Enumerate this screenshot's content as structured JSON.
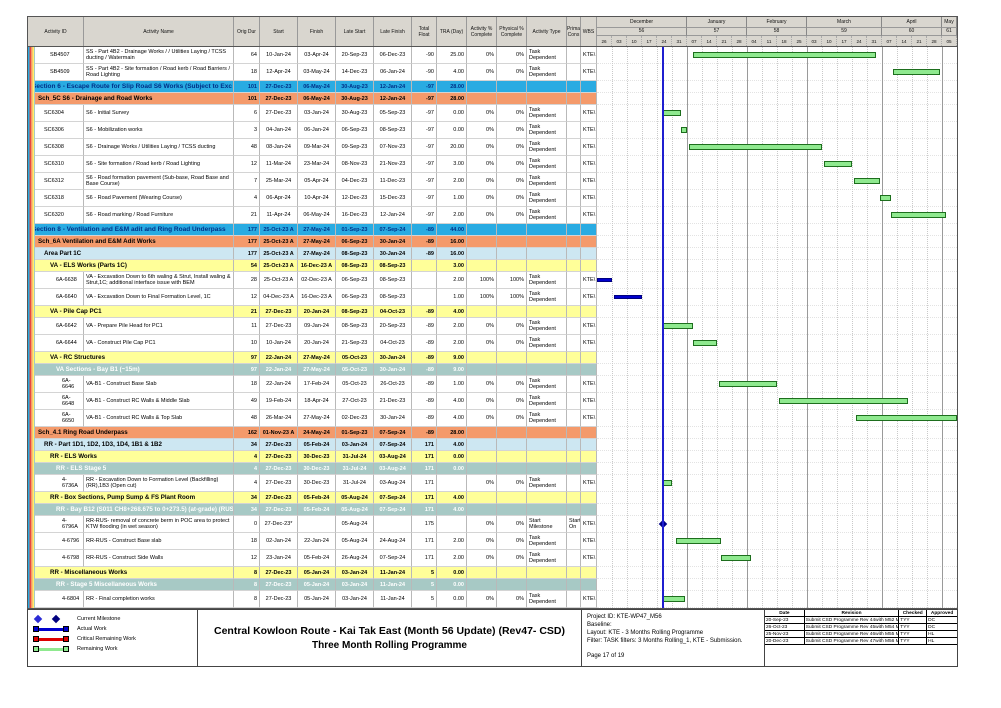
{
  "table": {
    "columns": [
      "Activity ID",
      "Activity Name",
      "Orig Dur",
      "Start",
      "Finish",
      "Late Start",
      "Late Finish",
      "Total Float",
      "TRA (Day)",
      "Activity % Complete",
      "Physical % Complete",
      "Activity Type",
      "Prima Cons",
      "WBS"
    ]
  },
  "timeline": {
    "chart_start": "26-Nov-23",
    "data_date": "27-Dec-23",
    "months": [
      {
        "label": "December",
        "num": "56",
        "weeks": [
          "26",
          "03",
          "10",
          "17",
          "24",
          "31"
        ]
      },
      {
        "label": "January",
        "num": "57",
        "weeks": [
          "07",
          "14",
          "21",
          "28"
        ]
      },
      {
        "label": "February",
        "num": "58",
        "weeks": [
          "04",
          "11",
          "18",
          "25"
        ]
      },
      {
        "label": "March",
        "num": "59",
        "weeks": [
          "03",
          "10",
          "17",
          "24",
          "31"
        ]
      },
      {
        "label": "April",
        "num": "60",
        "weeks": [
          "07",
          "14",
          "21",
          "28"
        ]
      },
      {
        "label": "May",
        "num": "61",
        "weeks": [
          "05"
        ]
      }
    ]
  },
  "rows": [
    {
      "t": "leaf",
      "l": 3,
      "id": "SB4507",
      "name": "SS - Part 4B2 - Drainage Works / / Utilities Laying / TCSS ducting / Watermain",
      "od": "64",
      "start": "10-Jan-24",
      "finish": "03-Apr-24",
      "ls": "20-Sep-23",
      "lf": "06-Dec-23",
      "tf": "-90",
      "tra": "25.00",
      "ap": "0%",
      "pp": "0%",
      "atype": "Task Dependent",
      "prima": "",
      "wbs": "KTE\\"
    },
    {
      "t": "leaf",
      "l": 3,
      "id": "SB4509",
      "name": "SS - Part 4B2 - Site formation / Road kerb / Road Barriers / Road Lighting",
      "od": "18",
      "start": "12-Apr-24",
      "finish": "03-May-24",
      "ls": "14-Dec-23",
      "lf": "06-Jan-24",
      "tf": "-90",
      "tra": "4.00",
      "ap": "0%",
      "pp": "0%",
      "atype": "Task Dependent",
      "prima": "",
      "wbs": "KTE\\"
    },
    {
      "t": "sec",
      "l": 0,
      "name": "Section 6 - Escape Route for Slip Road S6 Works (Subject to Exc",
      "od": "101",
      "start": "27-Dec-23",
      "finish": "06-May-24",
      "ls": "30-Aug-23",
      "lf": "12-Jan-24",
      "tf": "-97",
      "tra": "28.00"
    },
    {
      "t": "sch",
      "l": 1,
      "name": "Sch_5C S6 - Drainage and Road Works",
      "od": "101",
      "start": "27-Dec-23",
      "finish": "06-May-24",
      "ls": "30-Aug-23",
      "lf": "12-Jan-24",
      "tf": "-97",
      "tra": "28.00"
    },
    {
      "t": "leaf",
      "l": 2,
      "id": "SC6304",
      "name": "S6 - Initial Survey",
      "od": "6",
      "start": "27-Dec-23",
      "finish": "03-Jan-24",
      "ls": "30-Aug-23",
      "lf": "05-Sep-23",
      "tf": "-97",
      "tra": "0.00",
      "ap": "0%",
      "pp": "0%",
      "atype": "Task Dependent",
      "prima": "",
      "wbs": "KTE\\"
    },
    {
      "t": "leaf",
      "l": 2,
      "id": "SC6306",
      "name": "S6 - Mobilization works",
      "od": "3",
      "start": "04-Jan-24",
      "finish": "06-Jan-24",
      "ls": "06-Sep-23",
      "lf": "08-Sep-23",
      "tf": "-97",
      "tra": "0.00",
      "ap": "0%",
      "pp": "0%",
      "atype": "Task Dependent",
      "prima": "",
      "wbs": "KTE\\"
    },
    {
      "t": "leaf",
      "l": 2,
      "id": "SC6308",
      "name": "S6 - Drainage Works / Utilities Laying / TCSS ducting",
      "od": "48",
      "start": "08-Jan-24",
      "finish": "09-Mar-24",
      "ls": "09-Sep-23",
      "lf": "07-Nov-23",
      "tf": "-97",
      "tra": "20.00",
      "ap": "0%",
      "pp": "0%",
      "atype": "Task Dependent",
      "prima": "",
      "wbs": "KTE\\"
    },
    {
      "t": "leaf",
      "l": 2,
      "id": "SC6310",
      "name": "S6 - Site formation / Road kerb / Road Lighting",
      "od": "12",
      "start": "11-Mar-24",
      "finish": "23-Mar-24",
      "ls": "08-Nov-23",
      "lf": "21-Nov-23",
      "tf": "-97",
      "tra": "3.00",
      "ap": "0%",
      "pp": "0%",
      "atype": "Task Dependent",
      "prima": "",
      "wbs": "KTE\\"
    },
    {
      "t": "leaf",
      "l": 2,
      "id": "SC6312",
      "name": "S6 - Road formation pavement (Sub-base, Road Base and Base Course)",
      "od": "7",
      "start": "25-Mar-24",
      "finish": "05-Apr-24",
      "ls": "04-Dec-23",
      "lf": "11-Dec-23",
      "tf": "-97",
      "tra": "2.00",
      "ap": "0%",
      "pp": "0%",
      "atype": "Task Dependent",
      "prima": "",
      "wbs": "KTE\\"
    },
    {
      "t": "leaf",
      "l": 2,
      "id": "SC6318",
      "name": "S6 - Road Pavement (Wearing Course)",
      "od": "4",
      "start": "06-Apr-24",
      "finish": "10-Apr-24",
      "ls": "12-Dec-23",
      "lf": "15-Dec-23",
      "tf": "-97",
      "tra": "1.00",
      "ap": "0%",
      "pp": "0%",
      "atype": "Task Dependent",
      "prima": "",
      "wbs": "KTE\\"
    },
    {
      "t": "leaf",
      "l": 2,
      "id": "SC6320",
      "name": "S6 - Road marking / Road Furniture",
      "od": "21",
      "start": "11-Apr-24",
      "finish": "06-May-24",
      "ls": "16-Dec-23",
      "lf": "12-Jan-24",
      "tf": "-97",
      "tra": "2.00",
      "ap": "0%",
      "pp": "0%",
      "atype": "Task Dependent",
      "prima": "",
      "wbs": "KTE\\"
    },
    {
      "t": "sec",
      "l": 0,
      "name": "Section 8 - Ventilation and E&M adit and Ring Road Underpass",
      "od": "177",
      "start": "25-Oct-23 A",
      "finish": "27-May-24",
      "ls": "01-Sep-23",
      "lf": "07-Sep-24",
      "tf": "-89",
      "tra": "44.00"
    },
    {
      "t": "sch",
      "l": 1,
      "name": "Sch_6A Ventilation and E&M Adit Works",
      "od": "177",
      "start": "25-Oct-23 A",
      "finish": "27-May-24",
      "ls": "06-Sep-23",
      "lf": "30-Jan-24",
      "tf": "-89",
      "tra": "16.00"
    },
    {
      "t": "area",
      "l": 2,
      "name": "Area Part 1C",
      "od": "177",
      "start": "25-Oct-23 A",
      "finish": "27-May-24",
      "ls": "08-Sep-23",
      "lf": "30-Jan-24",
      "tf": "-89",
      "tra": "16.00"
    },
    {
      "t": "sub",
      "l": 3,
      "name": "VA - ELS Works (Parts 1C)",
      "od": "54",
      "start": "25-Oct-23 A",
      "finish": "16-Dec-23 A",
      "ls": "08-Sep-23",
      "lf": "08-Sep-23",
      "tf": "",
      "tra": "3.00"
    },
    {
      "t": "leaf",
      "l": 4,
      "id": "6A-6638",
      "name": "VA - Excavation Down to 6th waling & Strut, Install waling & Strut,1C; additional interface issue with BEM",
      "od": "28",
      "start": "25-Oct-23 A",
      "finish": "02-Dec-23 A",
      "ls": "06-Sep-23",
      "lf": "08-Sep-23",
      "tf": "",
      "tra": "2.00",
      "ap": "100%",
      "pp": "100%",
      "atype": "Task Dependent",
      "prima": "",
      "wbs": "KTE\\"
    },
    {
      "t": "leaf",
      "l": 4,
      "id": "6A-6640",
      "name": "VA - Excavation Down to Final Formation Level, 1C",
      "od": "12",
      "start": "04-Dec-23 A",
      "finish": "16-Dec-23 A",
      "ls": "06-Sep-23",
      "lf": "08-Sep-23",
      "tf": "",
      "tra": "1.00",
      "ap": "100%",
      "pp": "100%",
      "atype": "Task Dependent",
      "prima": "",
      "wbs": "KTE\\"
    },
    {
      "t": "sub",
      "l": 3,
      "name": "VA - Pile Cap PC1",
      "od": "21",
      "start": "27-Dec-23",
      "finish": "20-Jan-24",
      "ls": "08-Sep-23",
      "lf": "04-Oct-23",
      "tf": "-89",
      "tra": "4.00"
    },
    {
      "t": "leaf",
      "l": 4,
      "id": "6A-6642",
      "name": "VA - Prepare Pile Head for PC1",
      "od": "11",
      "start": "27-Dec-23",
      "finish": "09-Jan-24",
      "ls": "08-Sep-23",
      "lf": "20-Sep-23",
      "tf": "-89",
      "tra": "2.00",
      "ap": "0%",
      "pp": "0%",
      "atype": "Task Dependent",
      "prima": "",
      "wbs": "KTE\\"
    },
    {
      "t": "leaf",
      "l": 4,
      "id": "6A-6644",
      "name": "VA - Construct Pile Cap PC1",
      "od": "10",
      "start": "10-Jan-24",
      "finish": "20-Jan-24",
      "ls": "21-Sep-23",
      "lf": "04-Oct-23",
      "tf": "-89",
      "tra": "2.00",
      "ap": "0%",
      "pp": "0%",
      "atype": "Task Dependent",
      "prima": "",
      "wbs": "KTE\\"
    },
    {
      "t": "sub",
      "l": 3,
      "name": "VA - RC Structures",
      "od": "97",
      "start": "22-Jan-24",
      "finish": "27-May-24",
      "ls": "05-Oct-23",
      "lf": "30-Jan-24",
      "tf": "-89",
      "tra": "9.00"
    },
    {
      "t": "bay",
      "l": 4,
      "name": "VA Sections - Bay B1 (~15m)",
      "od": "97",
      "start": "22-Jan-24",
      "finish": "27-May-24",
      "ls": "05-Oct-23",
      "lf": "30-Jan-24",
      "tf": "-89",
      "tra": "9.00"
    },
    {
      "t": "leaf",
      "l": 5,
      "id": "6A-6646",
      "name": "VA-B1 - Construct Base Slab",
      "od": "18",
      "start": "22-Jan-24",
      "finish": "17-Feb-24",
      "ls": "05-Oct-23",
      "lf": "26-Oct-23",
      "tf": "-89",
      "tra": "1.00",
      "ap": "0%",
      "pp": "0%",
      "atype": "Task Dependent",
      "prima": "",
      "wbs": "KTE\\"
    },
    {
      "t": "leaf",
      "l": 5,
      "id": "6A-6648",
      "name": "VA-B1 - Construct RC Walls & Middle Slab",
      "od": "49",
      "start": "19-Feb-24",
      "finish": "18-Apr-24",
      "ls": "27-Oct-23",
      "lf": "21-Dec-23",
      "tf": "-89",
      "tra": "4.00",
      "ap": "0%",
      "pp": "0%",
      "atype": "Task Dependent",
      "prima": "",
      "wbs": "KTE\\"
    },
    {
      "t": "leaf",
      "l": 5,
      "id": "6A-6650",
      "name": "VA-B1 - Construct RC Walls & Top Slab",
      "od": "48",
      "start": "26-Mar-24",
      "finish": "27-May-24",
      "ls": "02-Dec-23",
      "lf": "30-Jan-24",
      "tf": "-89",
      "tra": "4.00",
      "ap": "0%",
      "pp": "0%",
      "atype": "Task Dependent",
      "prima": "",
      "wbs": "KTE\\"
    },
    {
      "t": "sch",
      "l": 1,
      "name": "Sch_4.1 Ring Road Underpass",
      "od": "162",
      "start": "01-Nov-23 A",
      "finish": "24-May-24",
      "ls": "01-Sep-23",
      "lf": "07-Sep-24",
      "tf": "-89",
      "tra": "28.00"
    },
    {
      "t": "area",
      "l": 2,
      "name": "RR - Part 1D1, 1D2, 1D3, 1D4, 1B1 & 1B2",
      "od": "34",
      "start": "27-Dec-23",
      "finish": "05-Feb-24",
      "ls": "03-Jan-24",
      "lf": "07-Sep-24",
      "tf": "171",
      "tra": "4.00"
    },
    {
      "t": "sub",
      "l": 3,
      "name": "RR - ELS Works",
      "od": "4",
      "start": "27-Dec-23",
      "finish": "30-Dec-23",
      "ls": "31-Jul-24",
      "lf": "03-Aug-24",
      "tf": "171",
      "tra": "0.00"
    },
    {
      "t": "bay",
      "l": 4,
      "name": "RR - ELS Stage 5",
      "od": "4",
      "start": "27-Dec-23",
      "finish": "30-Dec-23",
      "ls": "31-Jul-24",
      "lf": "03-Aug-24",
      "tf": "171",
      "tra": "0.00"
    },
    {
      "t": "leaf",
      "l": 5,
      "id": "4-6736A",
      "name": "RR - Excavation Down to Formation Level (Backfilling) (RR),1B3 (Open cut)",
      "od": "4",
      "start": "27-Dec-23",
      "finish": "30-Dec-23",
      "ls": "31-Jul-24",
      "lf": "03-Aug-24",
      "tf": "171",
      "tra": "",
      "ap": "0%",
      "pp": "0%",
      "atype": "Task Dependent",
      "prima": "",
      "wbs": "KTE\\"
    },
    {
      "t": "sub",
      "l": 3,
      "name": "RR - Box Sections, Pump Sump & FS Plant Room",
      "od": "34",
      "start": "27-Dec-23",
      "finish": "05-Feb-24",
      "ls": "05-Aug-24",
      "lf": "07-Sep-24",
      "tf": "171",
      "tra": "4.00"
    },
    {
      "t": "bay",
      "l": 4,
      "name": "RR - Bay B12 (S011 CH8+268.675 to 0+273.5) (at-grade) (RUS)",
      "od": "34",
      "start": "27-Dec-23",
      "finish": "05-Feb-24",
      "ls": "05-Aug-24",
      "lf": "07-Sep-24",
      "tf": "171",
      "tra": "4.00"
    },
    {
      "t": "leaf",
      "l": 5,
      "id": "4-6796A",
      "name": "RR-RUS- removal of concrete berm in POC area to protect KTW flooding (in wet season)",
      "od": "0",
      "start": "27-Dec-23*",
      "finish": "",
      "ls": "05-Aug-24",
      "lf": "",
      "tf": "175",
      "tra": "",
      "ap": "0%",
      "pp": "0%",
      "atype": "Start Milestone",
      "prima": "Start On",
      "wbs": "KTE\\"
    },
    {
      "t": "leaf",
      "l": 5,
      "id": "4-6796",
      "name": "RR-RUS - Construct Base slab",
      "od": "18",
      "start": "02-Jan-24",
      "finish": "22-Jan-24",
      "ls": "05-Aug-24",
      "lf": "24-Aug-24",
      "tf": "171",
      "tra": "2.00",
      "ap": "0%",
      "pp": "0%",
      "atype": "Task Dependent",
      "prima": "",
      "wbs": "KTE\\"
    },
    {
      "t": "leaf",
      "l": 5,
      "id": "4-6798",
      "name": "RR-RUS - Construct Side Walls",
      "od": "12",
      "start": "23-Jan-24",
      "finish": "05-Feb-24",
      "ls": "26-Aug-24",
      "lf": "07-Sep-24",
      "tf": "171",
      "tra": "2.00",
      "ap": "0%",
      "pp": "0%",
      "atype": "Task Dependent",
      "prima": "",
      "wbs": "KTE\\"
    },
    {
      "t": "sub",
      "l": 3,
      "name": "RR - Miscellaneous Works",
      "od": "8",
      "start": "27-Dec-23",
      "finish": "05-Jan-24",
      "ls": "03-Jan-24",
      "lf": "11-Jan-24",
      "tf": "5",
      "tra": "0.00"
    },
    {
      "t": "bay",
      "l": 4,
      "name": "RR - Stage 5 Miscellaneous Works",
      "od": "8",
      "start": "27-Dec-23",
      "finish": "05-Jan-24",
      "ls": "03-Jan-24",
      "lf": "11-Jan-24",
      "tf": "5",
      "tra": "0.00"
    },
    {
      "t": "leaf",
      "l": 5,
      "id": "4-6804",
      "name": "RR - Final completion works",
      "od": "8",
      "start": "27-Dec-23",
      "finish": "05-Jan-24",
      "ls": "03-Jan-24",
      "lf": "11-Jan-24",
      "tf": "5",
      "tra": "0.00",
      "ap": "0%",
      "pp": "0%",
      "atype": "Task Dependent",
      "prima": "",
      "wbs": "KTE\\"
    }
  ],
  "legend": {
    "items": [
      {
        "label": "Current Milestone",
        "kind": "milestone"
      },
      {
        "label": "Actual Work",
        "kind": "actual"
      },
      {
        "label": "Critical Remaining Work",
        "kind": "critical"
      },
      {
        "label": "Remaining Work",
        "kind": "remaining"
      }
    ]
  },
  "titleblock": {
    "line1": "Central Kowloon Route - Kai Tak East (Month 56 Update) (Rev47- CSD)",
    "line2": "Three Month Rolling Programme"
  },
  "project_info": {
    "project_id": "Project ID: KTE-WP47_M56",
    "baseline": "Baseline:",
    "layout": "Layout: KTE - 3 Months Rolling Programme",
    "filter": "Filter: TASK filters: 3 Months Rolling_1, KTE - Submission.",
    "page": "Page 17 of 19"
  },
  "revisions": {
    "headers": [
      "Date",
      "Revision",
      "Checked",
      "Approved"
    ],
    "rows": [
      [
        "20-Sep-23",
        "Submit CSD Programme Rev 44with M52 Mon...",
        "TYY",
        "DC"
      ],
      [
        "26-Oct-23",
        "Submit CSD Programme Rev 45with M54 Mon...",
        "TYY",
        "DC"
      ],
      [
        "25-Nov-23",
        "Submit CSD Programme Rev 46with M55 Mon...",
        "TYY",
        "HL"
      ],
      [
        "20-Dec-23",
        "Submit CSD Programme Rev 47with M56 Mon...",
        "TYY",
        "HL"
      ]
    ]
  },
  "colors": {
    "section_band": "#29abe2",
    "sch_band": "#f49a6b",
    "area_band": "#cde7f2",
    "sub_band": "#ffff99",
    "bay_band": "#a7c9c5",
    "remaining_bar": "#8fe98f",
    "actual_bar": "#0000cd",
    "critical_bar": "#dd0000",
    "milestone": "#00008b",
    "data_date_line": "#1f1fd0"
  }
}
